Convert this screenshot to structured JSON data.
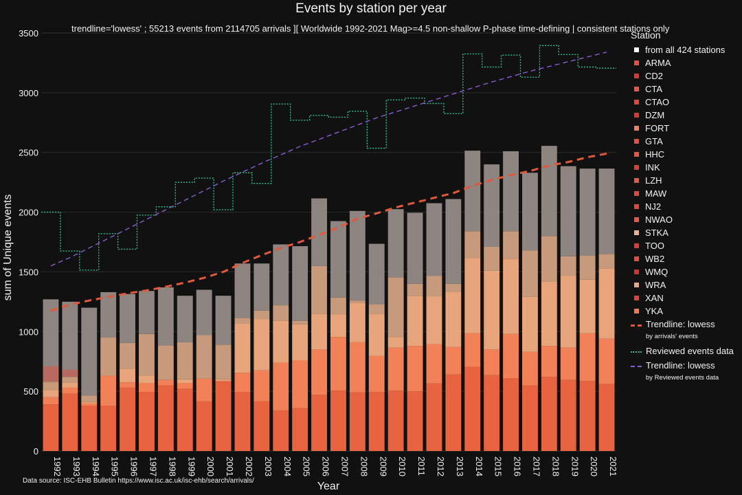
{
  "chart_data": {
    "type": "bar",
    "title": "Events by station per year",
    "subtitle": "trendline='lowess' ; 55213 events from 2114705 arrivals ][ Worldwide 1992-2021 Mag>=4.5 non-shallow P-phase time-defining | consistent stations only",
    "xlabel": "Year",
    "ylabel": "sum of Unique events",
    "ylim": [
      0,
      3500
    ],
    "yticks": [
      0,
      500,
      1000,
      1500,
      2000,
      2500,
      3000,
      3500
    ],
    "grid": true,
    "legend_placement": "right",
    "source": "Data source: ISC-EHB Bulletin  https://www.isc.ac.uk/isc-ehb/search/arrivals/",
    "categories": [
      "1992",
      "1993",
      "1994",
      "1995",
      "1996",
      "1997",
      "1998",
      "1999",
      "2000",
      "2001",
      "2002",
      "2003",
      "2004",
      "2005",
      "2006",
      "2007",
      "2008",
      "2009",
      "2010",
      "2011",
      "2012",
      "2013",
      "2014",
      "2015",
      "2016",
      "2017",
      "2018",
      "2019",
      "2020",
      "2021"
    ],
    "stacked_bar_layers": [
      {
        "values": [
          390,
          480,
          380,
          380,
          530,
          495,
          550,
          520,
          415,
          580,
          495,
          415,
          340,
          360,
          470,
          505,
          490,
          495,
          505,
          500,
          565,
          640,
          705,
          635,
          610,
          550,
          620,
          595,
          585,
          560
        ],
        "color": "#e8633f"
      },
      {
        "values": [
          60,
          50,
          20,
          250,
          45,
          75,
          45,
          50,
          190,
          10,
          160,
          260,
          400,
          400,
          380,
          450,
          420,
          300,
          360,
          380,
          330,
          230,
          280,
          215,
          370,
          280,
          260,
          270,
          400,
          380
        ],
        "color": "#f28157"
      },
      {
        "values": [
          60,
          40,
          10,
          0,
          110,
          60,
          0,
          30,
          0,
          10,
          410,
          430,
          350,
          300,
          300,
          190,
          330,
          355,
          90,
          420,
          400,
          460,
          630,
          660,
          630,
          460,
          540,
          600,
          450,
          590
        ],
        "color": "#e8a57c"
      },
      {
        "values": [
          70,
          50,
          55,
          320,
          220,
          350,
          290,
          310,
          365,
          290,
          50,
          70,
          130,
          30,
          400,
          140,
          20,
          80,
          500,
          100,
          170,
          70,
          225,
          200,
          230,
          390,
          380,
          165,
          200,
          120
        ],
        "color": "#c89a7c"
      },
      {
        "values": [
          690,
          630,
          735,
          380,
          410,
          360,
          485,
          390,
          380,
          410,
          455,
          395,
          510,
          625,
          565,
          640,
          750,
          505,
          570,
          595,
          610,
          710,
          675,
          690,
          670,
          650,
          755,
          755,
          730,
          715
        ],
        "color": "#8e8480"
      }
    ],
    "overlay_layers": [
      {
        "values": [
          130,
          60,
          0,
          0,
          0,
          0,
          0,
          0,
          0,
          0,
          0,
          0,
          0,
          0,
          0,
          0,
          0,
          0,
          0,
          0,
          0,
          0,
          0,
          0,
          0,
          0,
          0,
          0,
          0,
          0
        ],
        "color": "#c0645a"
      }
    ],
    "series": [
      {
        "name": "Trendline: lowess",
        "legend_sub": "by arrivals' events",
        "type": "line",
        "dash": "long",
        "color": "#e2583c",
        "values": [
          1175,
          1225,
          1260,
          1290,
          1320,
          1345,
          1375,
          1410,
          1450,
          1500,
          1575,
          1640,
          1700,
          1750,
          1810,
          1870,
          1945,
          1990,
          2040,
          2080,
          2120,
          2160,
          2220,
          2270,
          2310,
          2345,
          2390,
          2420,
          2460,
          2490
        ]
      },
      {
        "name": "Reviewed events data",
        "type": "step",
        "dash": "dot",
        "color": "#2fbf8c",
        "values": [
          2000,
          1675,
          1515,
          1820,
          1690,
          1975,
          2045,
          2250,
          2285,
          2020,
          2330,
          2240,
          2905,
          2770,
          2810,
          2795,
          2845,
          2535,
          2940,
          2955,
          2910,
          2825,
          3325,
          3215,
          3315,
          3130,
          3395,
          3320,
          3215,
          3205
        ]
      },
      {
        "name": "Trendline: lowess",
        "legend_sub": "by Reviewed events data",
        "type": "line",
        "dash": "medium",
        "color": "#8a5cd6",
        "values": [
          1550,
          1620,
          1700,
          1780,
          1860,
          1940,
          2020,
          2100,
          2180,
          2260,
          2335,
          2410,
          2480,
          2550,
          2610,
          2670,
          2730,
          2790,
          2840,
          2890,
          2940,
          2990,
          3040,
          3090,
          3135,
          3180,
          3220,
          3260,
          3300,
          3340
        ]
      }
    ]
  },
  "legend": {
    "title": "Station",
    "stations": [
      {
        "label": "from all 424 stations",
        "color": "#ffffff"
      },
      {
        "label": "ARMA",
        "color": "#e5533c"
      },
      {
        "label": "CD2",
        "color": "#d83a2e"
      },
      {
        "label": "CTA",
        "color": "#e65a40"
      },
      {
        "label": "CTAO",
        "color": "#df4a36"
      },
      {
        "label": "DZM",
        "color": "#d63a30"
      },
      {
        "label": "FORT",
        "color": "#f0805a"
      },
      {
        "label": "GTA",
        "color": "#e0503a"
      },
      {
        "label": "HHC",
        "color": "#e45840"
      },
      {
        "label": "INK",
        "color": "#d8402f"
      },
      {
        "label": "LZH",
        "color": "#e35a41"
      },
      {
        "label": "MAW",
        "color": "#e04a35"
      },
      {
        "label": "NJ2",
        "color": "#dc4a38"
      },
      {
        "label": "NWAO",
        "color": "#e45b41"
      },
      {
        "label": "STKA",
        "color": "#f0b08a"
      },
      {
        "label": "TOO",
        "color": "#dc3f31"
      },
      {
        "label": "WB2",
        "color": "#e14f3a"
      },
      {
        "label": "WMQ",
        "color": "#cf3329"
      },
      {
        "label": "WRA",
        "color": "#e8a77e"
      },
      {
        "label": "XAN",
        "color": "#e04433"
      },
      {
        "label": "YKA",
        "color": "#ef7a55"
      }
    ]
  }
}
